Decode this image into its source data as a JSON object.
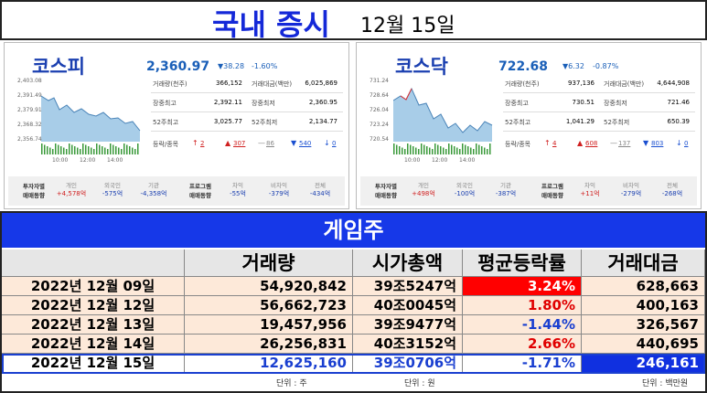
{
  "header": {
    "title": "국내 증시",
    "date": "12월 15일"
  },
  "panels": [
    {
      "name": "코스피",
      "price": "2,360.97",
      "change": "▼38.28",
      "change_pct": "-1.60%",
      "chart_yticks": [
        "2,403.08",
        "2,391.49",
        "2,379.91",
        "2,368.32",
        "2,356.74"
      ],
      "chart_xticks": [
        "10:00",
        "12:00",
        "14:00"
      ],
      "stats": [
        [
          "거래량(천주)",
          "366,152",
          "거래대금(백만)",
          "6,025,869"
        ],
        [
          "장중최고",
          "2,392.11",
          "장중최저",
          "2,360.95"
        ],
        [
          "52주최고",
          "3,025.77",
          "52주최저",
          "2,134.77"
        ]
      ],
      "breadth_label": "등락/종목",
      "breadth": [
        {
          "symbol": "↑",
          "value": "2"
        },
        {
          "symbol": "▲",
          "value": "307"
        },
        {
          "symbol": "—",
          "value": "86"
        },
        {
          "symbol": "▼",
          "value": "540"
        },
        {
          "symbol": "↓",
          "value": "0"
        }
      ],
      "investor_label": [
        "투자자별",
        "매매동향"
      ],
      "investors": [
        {
          "label": "개인",
          "value": "+4,578억"
        },
        {
          "label": "외국인",
          "value": "-575억"
        },
        {
          "label": "기관",
          "value": "-4,358억"
        }
      ],
      "program_label": [
        "프로그램",
        "매매동향"
      ],
      "program": [
        {
          "label": "차익",
          "value": "-55억"
        },
        {
          "label": "비차익",
          "value": "-379억"
        },
        {
          "label": "전체",
          "value": "-434억"
        }
      ]
    },
    {
      "name": "코스닥",
      "price": "722.68",
      "change": "▼6.32",
      "change_pct": "-0.87%",
      "chart_yticks": [
        "731.24",
        "728.64",
        "726.04",
        "723.24",
        "720.54"
      ],
      "chart_xticks": [
        "10:00",
        "12:00",
        "14:00"
      ],
      "stats": [
        [
          "거래량(천주)",
          "937,136",
          "거래대금(백만)",
          "4,644,908"
        ],
        [
          "장중최고",
          "730.51",
          "장중최저",
          "721.46"
        ],
        [
          "52주최고",
          "1,041.29",
          "52주최저",
          "650.39"
        ]
      ],
      "breadth_label": "등락/종목",
      "breadth": [
        {
          "symbol": "↑",
          "value": "4"
        },
        {
          "symbol": "▲",
          "value": "608"
        },
        {
          "symbol": "—",
          "value": "137"
        },
        {
          "symbol": "▼",
          "value": "803"
        },
        {
          "symbol": "↓",
          "value": "0"
        }
      ],
      "investor_label": [
        "투자자별",
        "매매동향"
      ],
      "investors": [
        {
          "label": "개인",
          "value": "+498억"
        },
        {
          "label": "외국인",
          "value": "-100억"
        },
        {
          "label": "기관",
          "value": "-387억"
        }
      ],
      "program_label": [
        "프로그램",
        "매매동향"
      ],
      "program": [
        {
          "label": "차익",
          "value": "+11억"
        },
        {
          "label": "비차익",
          "value": "-279억"
        },
        {
          "label": "전체",
          "value": "-268억"
        }
      ]
    }
  ],
  "table": {
    "title": "게임주",
    "columns": [
      "",
      "거래량",
      "시가총액",
      "평균등락률",
      "거래대금"
    ],
    "rows": [
      [
        "2022년 12월 09일",
        "54,920,842",
        "39조5247억",
        "3.24%",
        "628,663"
      ],
      [
        "2022년 12월 12일",
        "56,662,723",
        "40조0045억",
        "1.80%",
        "400,163"
      ],
      [
        "2022년 12월 13일",
        "19,457,956",
        "39조9477억",
        "-1.44%",
        "326,567"
      ],
      [
        "2022년 12월 14일",
        "26,256,831",
        "40조3152억",
        "2.66%",
        "440,695"
      ],
      [
        "2022년 12월 15일",
        "12,625,160",
        "39조0706억",
        "-1.71%",
        "246,161"
      ]
    ],
    "units": [
      "단위 : 주",
      "단위 : 원",
      "단위 : 백만원"
    ]
  }
}
